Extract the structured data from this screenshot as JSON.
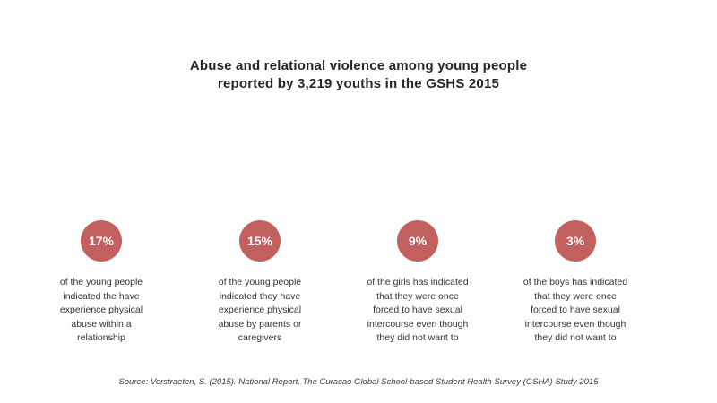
{
  "title": {
    "line1": "Abuse and relational violence among young people",
    "line2": "reported by 3,219 youths in the GSHS 2015"
  },
  "colors": {
    "badge": "#c1605f",
    "text": "#333333",
    "background": "#ffffff"
  },
  "stats": [
    {
      "value": "17%",
      "description": "of the young people\nindicated the have\nexperience physical\nabuse within a\nrelationship"
    },
    {
      "value": "15%",
      "description": "of the young people\nindicated they have\nexperience physical\nabuse by parents or\ncaregivers"
    },
    {
      "value": "9%",
      "description": "of the girls has indicated\nthat they were once\nforced to have sexual\nintercourse even though\nthey did not want to"
    },
    {
      "value": "3%",
      "description": "of the boys has indicated\nthat they were once\nforced to have sexual\nintercourse even though\nthey did not want to"
    }
  ],
  "source": "Source: Verstraeten, S. (2015). National Report. The Curacao Global School-based Student Health Survey (GSHA) Study 2015"
}
